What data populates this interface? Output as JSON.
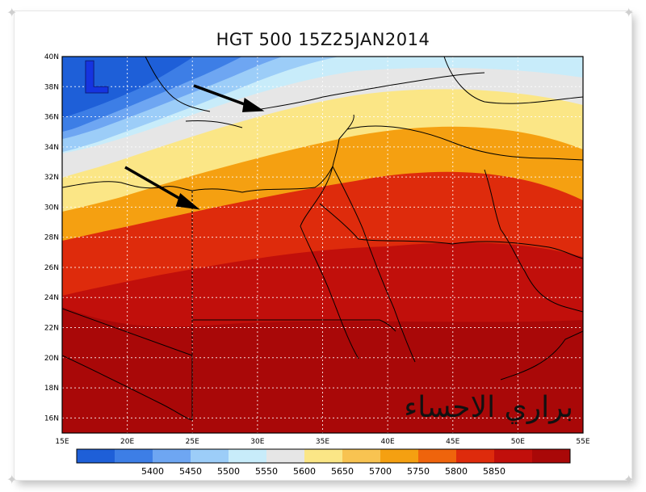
{
  "title": "HGT 500 15Z25JAN2014",
  "low_marker": "L",
  "watermark": "براري الاحساء",
  "map": {
    "lat_ticks": [
      "40N",
      "38N",
      "36N",
      "34N",
      "32N",
      "30N",
      "28N",
      "26N",
      "24N",
      "22N",
      "20N",
      "18N",
      "16N"
    ],
    "lon_ticks": [
      "15E",
      "20E",
      "25E",
      "30E",
      "35E",
      "40E",
      "45E",
      "50E",
      "55E"
    ],
    "lat_range": [
      15,
      40
    ],
    "lon_range": [
      15,
      55
    ],
    "grid": true
  },
  "colorbar": {
    "labels": [
      "5400",
      "5450",
      "5500",
      "5550",
      "5600",
      "5650",
      "5700",
      "5750",
      "5800",
      "5850"
    ],
    "colors": [
      "#1e5fd8",
      "#3d7ee6",
      "#6ea6f2",
      "#9ccdf8",
      "#c8ecfa",
      "#e6e6e6",
      "#fbe686",
      "#f8c351",
      "#f5a011",
      "#ef640c",
      "#de2b0c",
      "#c10f0b",
      "#a90808"
    ]
  },
  "colors": {
    "arrow": "#000000",
    "coastline": "#000000",
    "grid": "#ffffff"
  }
}
